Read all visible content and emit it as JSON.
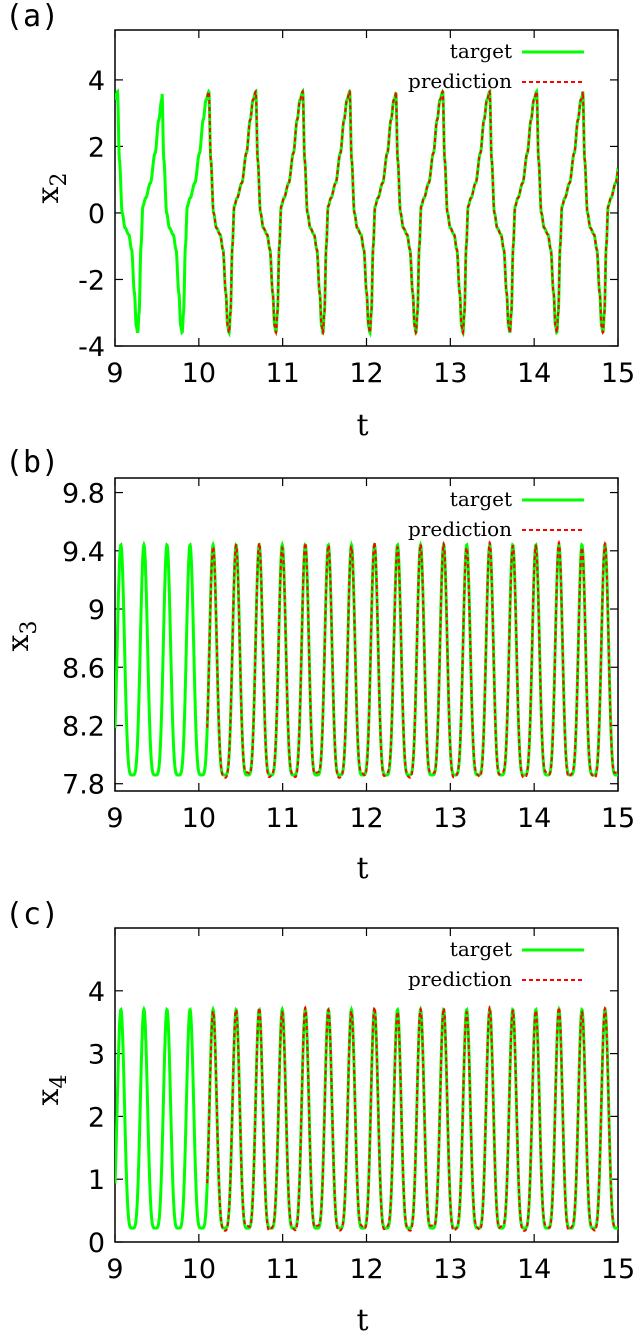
{
  "chart_data": [
    {
      "panel_label": "(a)",
      "type": "line",
      "xlabel": "t",
      "ylabel": "x",
      "ylabel_sub": "2",
      "xlim": [
        9,
        15
      ],
      "ylim": [
        -4,
        5.5
      ],
      "xticks": [
        "9",
        "10",
        "11",
        "12",
        "13",
        "14",
        "15"
      ],
      "yticks": [
        "-4",
        "-2",
        "0",
        "2",
        "4"
      ],
      "legend_position": "top-right",
      "series": [
        {
          "name": "target",
          "color": "#00ff00",
          "style": "solid",
          "x_range": [
            9,
            15
          ]
        },
        {
          "name": "prediction",
          "color": "#ff0000",
          "style": "dashed",
          "x_range": [
            10.1,
            15
          ]
        }
      ],
      "signal": {
        "kind": "relaxation",
        "period": 0.56,
        "peaks_at": [
          9.03,
          9.56,
          10.12,
          10.68,
          11.24,
          11.8,
          12.35,
          12.91,
          13.47,
          14.03,
          14.58
        ],
        "max": 3.65,
        "min": -3.6
      }
    },
    {
      "panel_label": "(b)",
      "type": "line",
      "xlabel": "t",
      "ylabel": "x",
      "ylabel_sub": "3",
      "xlim": [
        9,
        15
      ],
      "ylim": [
        7.75,
        9.9
      ],
      "xticks": [
        "9",
        "10",
        "11",
        "12",
        "13",
        "14",
        "15"
      ],
      "yticks": [
        "7.8",
        "8.2",
        "8.6",
        "9",
        "9.4",
        "9.8"
      ],
      "legend_position": "top-right",
      "series": [
        {
          "name": "target",
          "color": "#00ff00",
          "style": "solid",
          "x_range": [
            9,
            15
          ]
        },
        {
          "name": "prediction",
          "color": "#ff0000",
          "style": "dashed",
          "x_range": [
            10.1,
            15
          ]
        }
      ],
      "signal": {
        "kind": "periodic",
        "period": 0.275,
        "first_peak": 9.07,
        "max": 9.44,
        "min": 7.86
      }
    },
    {
      "panel_label": "(c)",
      "type": "line",
      "xlabel": "t",
      "ylabel": "x",
      "ylabel_sub": "4",
      "xlim": [
        9,
        15
      ],
      "ylim": [
        0,
        5
      ],
      "xticks": [
        "9",
        "10",
        "11",
        "12",
        "13",
        "14",
        "15"
      ],
      "yticks": [
        "0",
        "1",
        "2",
        "3",
        "4"
      ],
      "legend_position": "top-right",
      "series": [
        {
          "name": "target",
          "color": "#00ff00",
          "style": "solid",
          "x_range": [
            9,
            15
          ]
        },
        {
          "name": "prediction",
          "color": "#ff0000",
          "style": "dashed",
          "x_range": [
            10.1,
            15
          ]
        }
      ],
      "signal": {
        "kind": "periodic",
        "period": 0.275,
        "first_peak": 9.07,
        "max": 3.7,
        "min": 0.22
      }
    }
  ]
}
